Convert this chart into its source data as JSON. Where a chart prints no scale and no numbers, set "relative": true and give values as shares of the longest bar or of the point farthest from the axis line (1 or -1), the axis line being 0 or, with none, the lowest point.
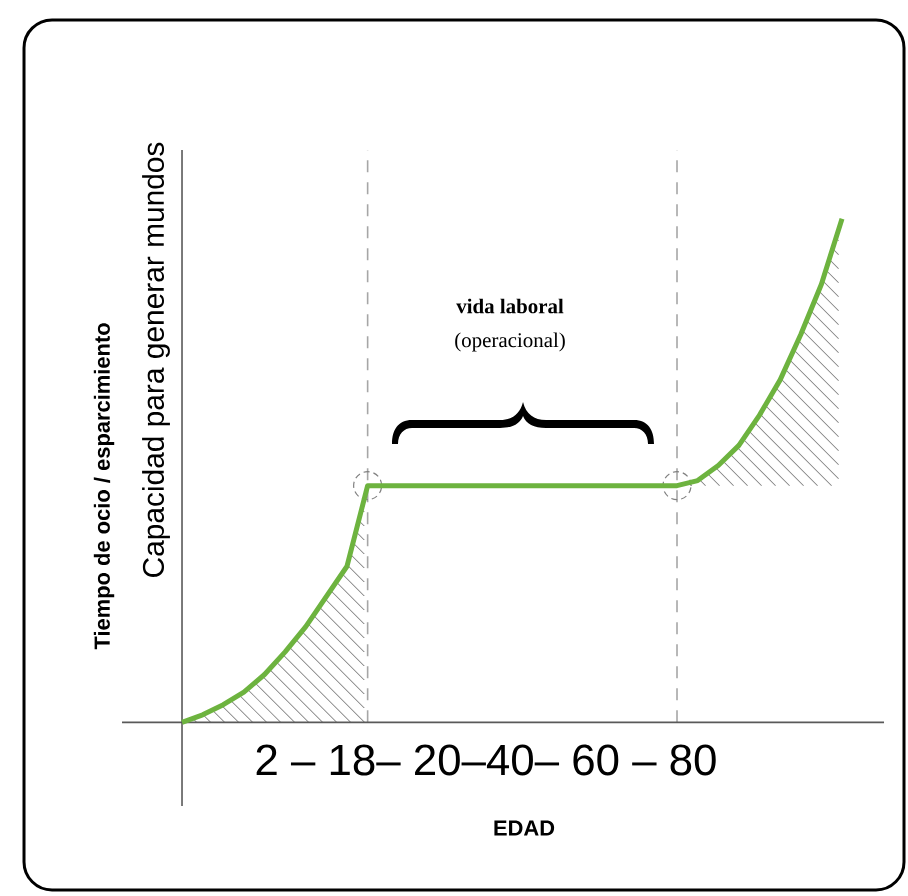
{
  "chart_data": {
    "type": "line",
    "relative": true,
    "ylabel": "Tiempo de ocio / esparcimiento",
    "xlabel": "EDAD",
    "categories": [
      null,
      null,
      null,
      null,
      null,
      null,
      null,
      null,
      null,
      null,
      null,
      null,
      null,
      null,
      null,
      null,
      null,
      null,
      null,
      null,
      null,
      null,
      null,
      null,
      null,
      null,
      null,
      null,
      null,
      null,
      null,
      null,
      null
    ],
    "series": [
      {
        "color": "#6db33f",
        "values": [
          0,
          0.015,
          0.035,
          0.06,
          0.095,
          0.14,
          0.19,
          0.25,
          0.31,
          0.47,
          0.47,
          0.47,
          0.47,
          0.47,
          0.47,
          0.47,
          0.47,
          0.47,
          0.47,
          0.47,
          0.47,
          0.47,
          0.47,
          0.47,
          0.47,
          0.48,
          0.51,
          0.55,
          0.61,
          0.68,
          0.77,
          0.87,
          1
        ]
      }
    ],
    "annotations": [
      "Capacidad para generar mundos",
      "vida laboral",
      "(operacional)",
      "2 – 18– 20–40– 60 – 80"
    ]
  }
}
